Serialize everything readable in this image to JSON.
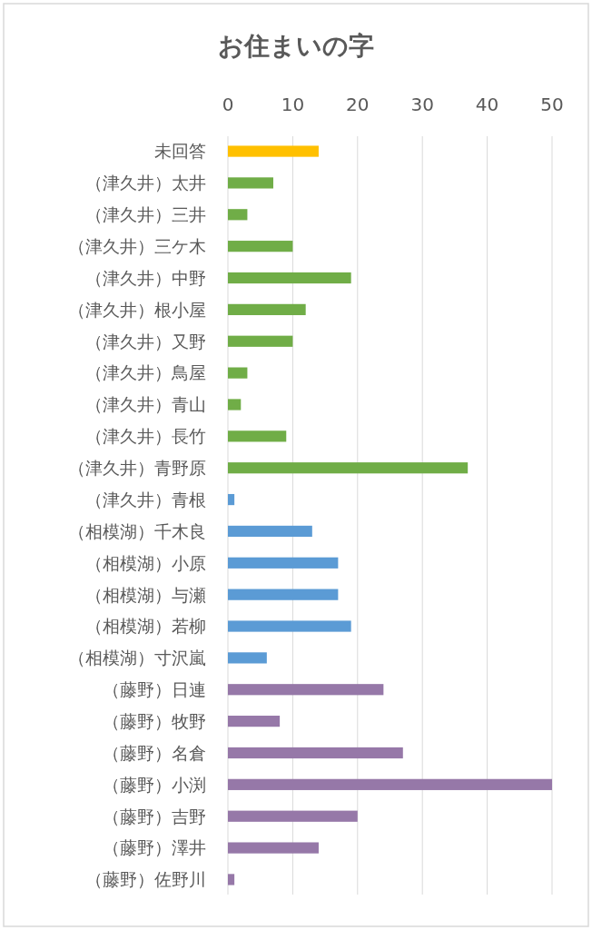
{
  "chart_data": {
    "type": "bar",
    "orientation": "horizontal",
    "title": "お住まいの字",
    "categories": [
      "未回答",
      "（津久井）太井",
      "（津久井）三井",
      "（津久井）三ケ木",
      "（津久井）中野",
      "（津久井）根小屋",
      "（津久井）又野",
      "（津久井）鳥屋",
      "（津久井）青山",
      "（津久井）長竹",
      "（津久井）青野原",
      "（津久井）青根",
      "（相模湖）千木良",
      "（相模湖）小原",
      "（相模湖）与瀬",
      "（相模湖）若柳",
      "（相模湖）寸沢嵐",
      "（藤野）日連",
      "（藤野）牧野",
      "（藤野）名倉",
      "（藤野）小渕",
      "（藤野）吉野",
      "（藤野）澤井",
      "（藤野）佐野川"
    ],
    "values": [
      14,
      7,
      3,
      10,
      19,
      12,
      10,
      3,
      2,
      9,
      37,
      1,
      13,
      17,
      17,
      19,
      6,
      24,
      8,
      27,
      50,
      20,
      14,
      1
    ],
    "colors": [
      "#ffc000",
      "#70ad47",
      "#70ad47",
      "#70ad47",
      "#70ad47",
      "#70ad47",
      "#70ad47",
      "#70ad47",
      "#70ad47",
      "#70ad47",
      "#70ad47",
      "#5b9bd5",
      "#5b9bd5",
      "#5b9bd5",
      "#5b9bd5",
      "#5b9bd5",
      "#5b9bd5",
      "#9678a8",
      "#9678a8",
      "#9678a8",
      "#9678a8",
      "#9678a8",
      "#9678a8",
      "#9678a8"
    ],
    "xlim": [
      0,
      50
    ],
    "xticks": [
      0,
      10,
      20,
      30,
      40,
      50
    ],
    "grid": "x"
  }
}
